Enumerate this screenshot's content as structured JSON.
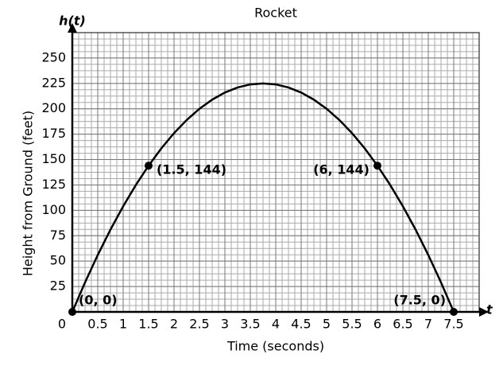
{
  "chart_data": {
    "type": "line",
    "title": "Rocket",
    "x_label": "Time (seconds)",
    "y_label": "Height from Ground (feet)",
    "x_axis_name": "t",
    "y_axis_name": "h(t)",
    "curve": {
      "color": "#000000",
      "x": [
        0,
        0.25,
        0.5,
        0.75,
        1,
        1.25,
        1.5,
        1.75,
        2,
        2.25,
        2.5,
        2.75,
        3,
        3.25,
        3.5,
        3.75,
        4,
        4.25,
        4.5,
        4.75,
        5,
        5.25,
        5.5,
        5.75,
        6,
        6.25,
        6.5,
        6.75,
        7,
        7.25,
        7.5
      ],
      "values": [
        0,
        29,
        56,
        81,
        104,
        125,
        144,
        161,
        176,
        189,
        200,
        209,
        216,
        221,
        224,
        225,
        224,
        221,
        216,
        209,
        200,
        189,
        176,
        161,
        144,
        125,
        104,
        81,
        56,
        29,
        0
      ]
    },
    "points": {
      "x": [
        0,
        1.5,
        6,
        7.5
      ],
      "values": [
        0,
        144,
        144,
        0
      ],
      "value_labels": [
        "(0, 0)",
        "(1.5, 144)",
        "(6, 144)",
        "(7.5, 0)"
      ]
    },
    "xlim": [
      0,
      8
    ],
    "ylim": [
      0,
      275
    ],
    "xticks": [
      0,
      0.5,
      1,
      1.5,
      2,
      2.5,
      3,
      3.5,
      4,
      4.5,
      5,
      5.5,
      6,
      6.5,
      7,
      7.5
    ],
    "yticks": [
      25,
      50,
      75,
      100,
      125,
      150,
      175,
      200,
      225,
      250
    ],
    "grid": true
  }
}
